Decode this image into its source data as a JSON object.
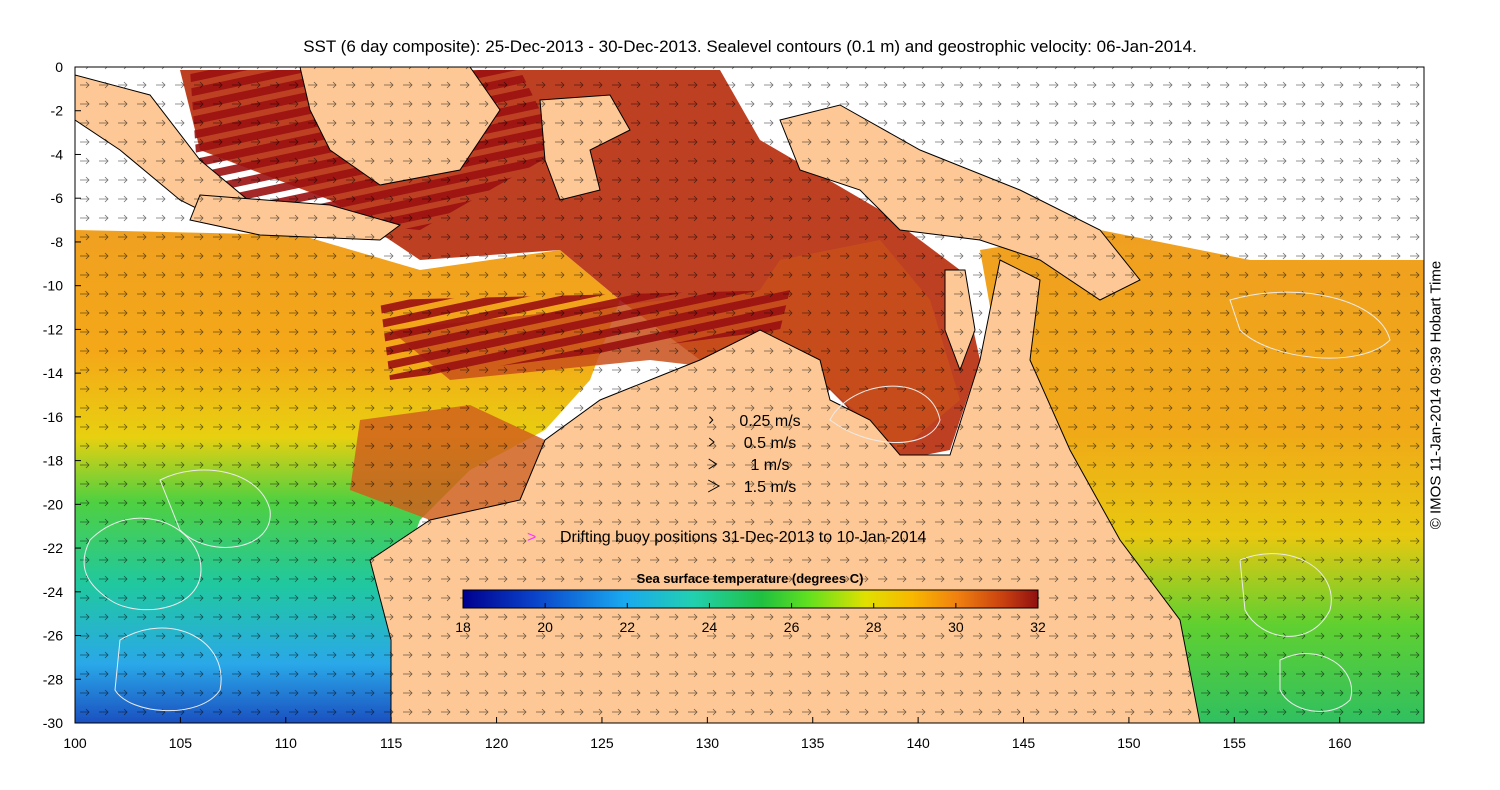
{
  "title": "SST (6 day composite): 25-Dec-2013 - 30-Dec-2013. Sealevel contours (0.1 m) and geostrophic velocity: 06-Jan-2014.",
  "axes": {
    "x_ticks": [
      100,
      105,
      110,
      115,
      120,
      125,
      130,
      135,
      140,
      145,
      150,
      155,
      160
    ],
    "y_ticks": [
      0,
      -2,
      -4,
      -6,
      -8,
      -10,
      -12,
      -14,
      -16,
      -18,
      -20,
      -22,
      -24,
      -26,
      -28,
      -30
    ],
    "x_range": [
      100,
      164
    ],
    "y_range": [
      -30,
      0
    ]
  },
  "velocity_legend": [
    {
      "label": "0.25 m/s",
      "speed": 0.25
    },
    {
      "label": "0.5 m/s",
      "speed": 0.5
    },
    {
      "label": "1 m/s",
      "speed": 1
    },
    {
      "label": "1.5 m/s",
      "speed": 1.5
    }
  ],
  "buoy_legend": {
    "marker": ">",
    "label": "Drifting buoy positions 31-Dec-2013 to 10-Jan-2014",
    "color": "#ff33ff"
  },
  "colorbar": {
    "title": "Sea surface temperature (degrees C)",
    "ticks": [
      "18",
      "20",
      "22",
      "24",
      "26",
      "28",
      "30",
      "32"
    ],
    "min": 18,
    "max": 32
  },
  "copyright": "© IMOS 11-Jan-2014 09:39 Hobart Time",
  "colors": {
    "land": "#fdc895",
    "contour": "#e8e8e8",
    "missing": "#ffffff"
  }
}
